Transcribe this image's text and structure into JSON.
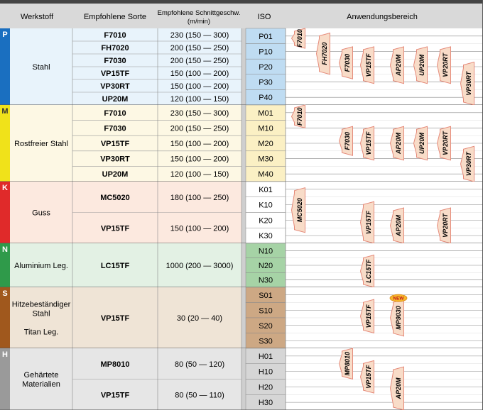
{
  "header": {
    "werkstoff": "Werkstoff",
    "sorte": "Empfohlene Sorte",
    "schnitt_line1": "Empfohlene Schnittgeschw.",
    "schnitt_line2": "(m/min)",
    "iso": "ISO",
    "anwendung": "Anwendungsbereich"
  },
  "colors": {
    "P": "#1a6fc0",
    "M": "#f0e21a",
    "K": "#e02a2a",
    "N": "#2f9a4a",
    "S": "#a0581d",
    "H": "#9a9a9a",
    "grade_label": "#f8dcc8",
    "grade_label_border": "#e58a7a"
  },
  "groups": [
    {
      "letter": "P",
      "material": [
        "Stahl"
      ],
      "bg": "#e8f3fb",
      "iso_bg": "#bfdcf2",
      "iso": [
        "P01",
        "P10",
        "P20",
        "P30",
        "P40"
      ],
      "grades": [
        {
          "name": "F7010",
          "speed": "230 (150 — 300)"
        },
        {
          "name": "FH7020",
          "speed": "200 (150 — 250)"
        },
        {
          "name": "F7030",
          "speed": "200 (150 — 250)"
        },
        {
          "name": "VP15TF",
          "speed": "150 (100 — 200)"
        },
        {
          "name": "VP30RT",
          "speed": "150 (100 — 200)"
        },
        {
          "name": "UP20M",
          "speed": "120 (100 — 150)"
        }
      ],
      "ranges": [
        {
          "label": "F7010",
          "from": 0,
          "to": 1.3,
          "col": 0
        },
        {
          "label": "FH7020",
          "from": 0.3,
          "to": 3.0,
          "col": 1
        },
        {
          "label": "F7030",
          "from": 1.2,
          "to": 3.3,
          "col": 2
        },
        {
          "label": "VP15TF",
          "from": 1.2,
          "to": 3.6,
          "col": 3
        },
        {
          "label": "AP20M",
          "from": 1.2,
          "to": 3.6,
          "col": 4
        },
        {
          "label": "UP20M",
          "from": 1.2,
          "to": 3.6,
          "col": 5
        },
        {
          "label": "VP20RT",
          "from": 1.2,
          "to": 3.6,
          "col": 6
        },
        {
          "label": "VP30RT",
          "from": 2.2,
          "to": 5.0,
          "col": 7
        }
      ]
    },
    {
      "letter": "M",
      "material": [
        "Rostfreier Stahl"
      ],
      "bg": "#fdf8e4",
      "iso_bg": "#fbf0c4",
      "iso": [
        "M01",
        "M10",
        "M20",
        "M30",
        "M40"
      ],
      "grades": [
        {
          "name": "F7010",
          "speed": "230 (150 — 300)"
        },
        {
          "name": "F7030",
          "speed": "200 (150 — 250)"
        },
        {
          "name": "VP15TF",
          "speed": "150 (100 — 200)"
        },
        {
          "name": "VP30RT",
          "speed": "150 (100 — 200)"
        },
        {
          "name": "UP20M",
          "speed": "120 (100 — 150)"
        }
      ],
      "ranges": [
        {
          "label": "F7010",
          "from": 0,
          "to": 1.5,
          "col": 0
        },
        {
          "label": "F7030",
          "from": 1.4,
          "to": 3.3,
          "col": 2
        },
        {
          "label": "VP15TF",
          "from": 1.4,
          "to": 3.6,
          "col": 3
        },
        {
          "label": "AP20M",
          "from": 1.4,
          "to": 3.6,
          "col": 4
        },
        {
          "label": "UP20M",
          "from": 1.4,
          "to": 3.6,
          "col": 5
        },
        {
          "label": "VP20RT",
          "from": 1.4,
          "to": 3.6,
          "col": 6
        },
        {
          "label": "VP30RT",
          "from": 2.7,
          "to": 5.0,
          "col": 7
        }
      ]
    },
    {
      "letter": "K",
      "material": [
        "Guss"
      ],
      "bg": "#fce9df",
      "iso_bg": "#ffffff",
      "iso": [
        "K01",
        "K10",
        "K20",
        "K30"
      ],
      "grades": [
        {
          "name": "MC5020",
          "speed": "180 (100 — 250)"
        },
        {
          "name": "VP15TF",
          "speed": "150 (100 — 200)"
        }
      ],
      "ranges": [
        {
          "label": "MC5020",
          "from": 0.4,
          "to": 3.3,
          "col": 0
        },
        {
          "label": "VP15TF",
          "from": 1.3,
          "to": 4.0,
          "col": 3
        },
        {
          "label": "AP20M",
          "from": 1.7,
          "to": 4.0,
          "col": 4
        },
        {
          "label": "VP20RT",
          "from": 1.7,
          "to": 4.0,
          "col": 6
        }
      ]
    },
    {
      "letter": "N",
      "material": [
        "Aluminium Leg."
      ],
      "bg": "#e3f1e4",
      "iso_bg": "#a6d3a6",
      "iso": [
        "N10",
        "N20",
        "N30"
      ],
      "grades": [
        {
          "name": "LC15TF",
          "speed": "1000 (200 — 3000)"
        }
      ],
      "ranges": [
        {
          "label": "LC15TF",
          "from": 0.8,
          "to": 3.0,
          "col": 3
        }
      ]
    },
    {
      "letter": "S",
      "material": [
        "Hitzebeständiger",
        "Stahl",
        "",
        "Titan Leg."
      ],
      "bg": "#efe4d6",
      "iso_bg": "#cda884",
      "iso": [
        "S01",
        "S10",
        "S20",
        "S30"
      ],
      "grades": [
        {
          "name": "VP15TF",
          "speed": "30 (20 — 40)"
        }
      ],
      "ranges": [
        {
          "label": "VP15TF",
          "from": 0.8,
          "to": 3.0,
          "col": 3
        },
        {
          "label": "MP9030",
          "from": 0.8,
          "to": 3.2,
          "col": 4,
          "new": true
        }
      ],
      "new_badge": "NEW"
    },
    {
      "letter": "H",
      "material": [
        "Gehärtete",
        "Materialien"
      ],
      "bg": "#e6e6e6",
      "iso_bg": "#d6d6d6",
      "iso": [
        "H01",
        "H10",
        "H20",
        "H30"
      ],
      "grades": [
        {
          "name": "MP8010",
          "speed": "80 (50 — 120)"
        },
        {
          "name": "VP15TF",
          "speed": "80 (50 — 110)"
        }
      ],
      "ranges": [
        {
          "label": "MP8010",
          "from": 0,
          "to": 2.0,
          "col": 2
        },
        {
          "label": "VP15TF",
          "from": 0.8,
          "to": 2.9,
          "col": 3
        },
        {
          "label": "AP20M",
          "from": 1.2,
          "to": 4.0,
          "col": 4
        }
      ]
    }
  ]
}
